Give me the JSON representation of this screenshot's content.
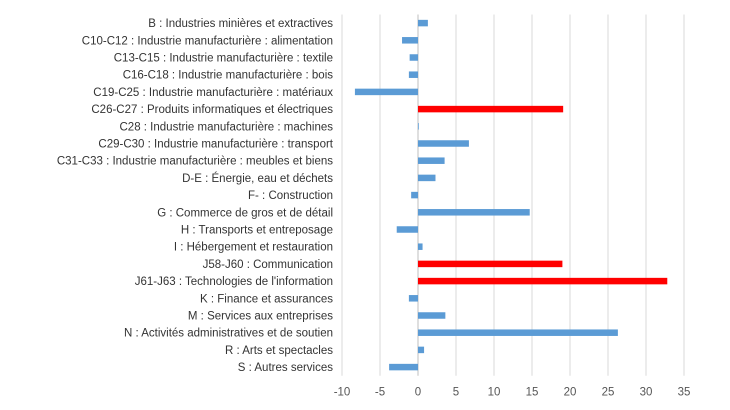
{
  "chart_data": {
    "type": "bar",
    "orientation": "horizontal",
    "title": "",
    "xlabel": "",
    "ylabel": "",
    "xlim": [
      -10,
      35
    ],
    "xticks": [
      "-10",
      "-5",
      "0",
      "5",
      "10",
      "15",
      "20",
      "25",
      "30",
      "35"
    ],
    "grid": true,
    "legend": "none",
    "colors": {
      "default": "#5b9bd5",
      "highlight": "#ff0000",
      "grid": "#d9d9d9"
    },
    "categories": [
      "B : Industries minières et extractives",
      "C10-C12 : Industrie manufacturière : alimentation",
      "C13-C15 : Industrie manufacturière : textile",
      "C16-C18 : Industrie manufacturière : bois",
      "C19-C25 : Industrie manufacturière : matériaux",
      "C26-C27 : Produits informatiques et électriques",
      "C28 : Industrie manufacturière : machines",
      "C29-C30 : Industrie manufacturière : transport",
      "C31-C33 : Industrie manufacturière : meubles et biens",
      "D-E : Énergie, eau et déchets",
      "F- : Construction",
      "G : Commerce de gros et de détail",
      "H : Transports et entreposage",
      "I : Hébergement et restauration",
      "J58-J60 : Communication",
      "J61-J63 : Technologies de l'information",
      "K : Finance et assurances",
      "M : Services aux entreprises",
      "N : Activités administratives et de soutien",
      "R : Arts et spectacles",
      "S : Autres services"
    ],
    "values": [
      1.3,
      -2.1,
      -1.1,
      -1.2,
      -8.3,
      19.1,
      0.1,
      6.7,
      3.5,
      2.3,
      -0.9,
      14.7,
      -2.8,
      0.6,
      19.0,
      32.8,
      -1.2,
      3.6,
      26.3,
      0.8,
      -3.8
    ],
    "highlight": [
      false,
      false,
      false,
      false,
      false,
      true,
      false,
      false,
      false,
      false,
      false,
      false,
      false,
      false,
      true,
      true,
      false,
      false,
      false,
      false,
      false
    ]
  }
}
